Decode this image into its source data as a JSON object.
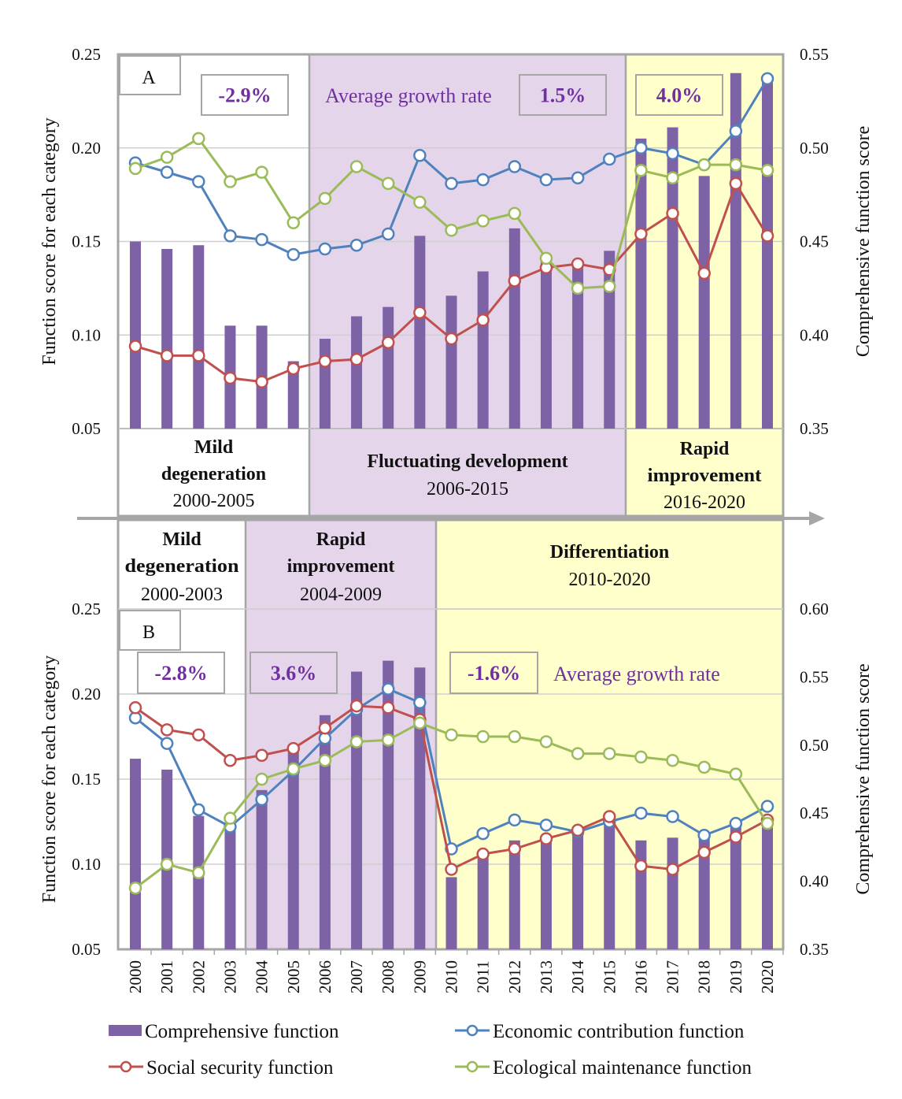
{
  "colors": {
    "bar": "#7E62A6",
    "economic": "#4F81BD",
    "social": "#C0504D",
    "ecological": "#9BBB59",
    "phase_white": "#FFFFFF",
    "phase_purple": "#E4D5EB",
    "phase_yellow": "#FFFFCC",
    "annotation_text": "#7030A0"
  },
  "x_axis": {
    "years": [
      "2000",
      "2001",
      "2002",
      "2003",
      "2004",
      "2005",
      "2006",
      "2007",
      "2008",
      "2009",
      "2010",
      "2011",
      "2012",
      "2013",
      "2014",
      "2015",
      "2016",
      "2017",
      "2018",
      "2019",
      "2020"
    ]
  },
  "legend": {
    "comprehensive": "Comprehensive function",
    "economic": "Economic contribution function",
    "social": "Social security function",
    "ecological": "Ecological maintenance function"
  },
  "chart_data": [
    {
      "type": "bar+line",
      "panel_label": "A",
      "ylabel": "Function score for each category",
      "ylabel_right": "Comprehensive function score",
      "ylim": [
        0.05,
        0.25
      ],
      "yticks": [
        "0.05",
        "0.10",
        "0.15",
        "0.20",
        "0.25"
      ],
      "ylim_right": [
        0.35,
        0.55
      ],
      "yticks_right": [
        "0.35",
        "0.40",
        "0.45",
        "0.50",
        "0.55"
      ],
      "grid": true,
      "phases": [
        {
          "title": "Mild degeneration",
          "title_lines": [
            "Mild",
            "degeneration"
          ],
          "years": "2000-2005",
          "color": "phase_white"
        },
        {
          "title": "Fluctuating development",
          "title_lines": [
            "Fluctuating development"
          ],
          "years": "2006-2015",
          "color": "phase_purple"
        },
        {
          "title": "Rapid improvement",
          "title_lines": [
            "Rapid",
            "improvement"
          ],
          "years": "2016-2020",
          "color": "phase_yellow"
        }
      ],
      "growth_rates": [
        "-2.9%",
        "1.5%",
        "4.0%"
      ],
      "growth_label": "Average growth rate",
      "series": [
        {
          "name": "Comprehensive function",
          "type": "bar",
          "axis": "right",
          "values": [
            0.45,
            0.446,
            0.448,
            0.405,
            0.405,
            0.386,
            0.398,
            0.41,
            0.415,
            0.453,
            0.421,
            0.434,
            0.457,
            0.443,
            0.437,
            0.445,
            0.505,
            0.511,
            0.485,
            0.54,
            0.535
          ]
        },
        {
          "name": "Economic contribution function",
          "type": "line",
          "axis": "left",
          "values": [
            0.192,
            0.187,
            0.182,
            0.153,
            0.151,
            0.143,
            0.146,
            0.148,
            0.154,
            0.196,
            0.181,
            0.183,
            0.19,
            0.183,
            0.184,
            0.194,
            0.2,
            0.197,
            0.191,
            0.209,
            0.237
          ]
        },
        {
          "name": "Social security function",
          "type": "line",
          "axis": "left",
          "values": [
            0.094,
            0.089,
            0.089,
            0.077,
            0.075,
            0.082,
            0.086,
            0.087,
            0.096,
            0.112,
            0.098,
            0.108,
            0.129,
            0.136,
            0.138,
            0.135,
            0.154,
            0.165,
            0.133,
            0.181,
            0.153
          ]
        },
        {
          "name": "Ecological maintenance function",
          "type": "line",
          "axis": "left",
          "values": [
            0.189,
            0.195,
            0.205,
            0.182,
            0.187,
            0.16,
            0.173,
            0.19,
            0.181,
            0.171,
            0.156,
            0.161,
            0.165,
            0.141,
            0.125,
            0.126,
            0.188,
            0.184,
            0.191,
            0.191,
            0.188
          ]
        }
      ]
    },
    {
      "type": "bar+line",
      "panel_label": "B",
      "ylabel": "Function score for each category",
      "ylabel_right": "Comprehensive function score",
      "ylim": [
        0.05,
        0.25
      ],
      "yticks": [
        "0.05",
        "0.10",
        "0.15",
        "0.20",
        "0.25"
      ],
      "ylim_right": [
        0.35,
        0.6
      ],
      "yticks_right": [
        "0.35",
        "0.40",
        "0.45",
        "0.50",
        "0.55",
        "0.60"
      ],
      "grid": true,
      "phases": [
        {
          "title": "Mild degeneration",
          "title_lines": [
            "Mild",
            "degeneration"
          ],
          "years": "2000-2003",
          "color": "phase_white"
        },
        {
          "title": "Rapid improvement",
          "title_lines": [
            "Rapid",
            "improvement"
          ],
          "years": "2004-2009",
          "color": "phase_purple"
        },
        {
          "title": "Differentiation",
          "title_lines": [
            "Differentiation"
          ],
          "years": "2010-2020",
          "color": "phase_yellow"
        }
      ],
      "growth_rates": [
        "-2.8%",
        "3.6%",
        "-1.6%"
      ],
      "growth_label": "Average growth rate",
      "series": [
        {
          "name": "Comprehensive function",
          "type": "bar",
          "axis": "right",
          "values": [
            0.49,
            0.482,
            0.448,
            0.443,
            0.467,
            0.5,
            0.522,
            0.554,
            0.562,
            0.557,
            0.403,
            0.419,
            0.43,
            0.43,
            0.437,
            0.443,
            0.43,
            0.432,
            0.432,
            0.441,
            0.442
          ]
        },
        {
          "name": "Economic contribution function",
          "type": "line",
          "axis": "left",
          "values": [
            0.186,
            0.171,
            0.132,
            0.122,
            0.138,
            0.155,
            0.174,
            0.191,
            0.203,
            0.195,
            0.109,
            0.118,
            0.126,
            0.123,
            0.119,
            0.125,
            0.13,
            0.128,
            0.117,
            0.124,
            0.134
          ]
        },
        {
          "name": "Social security function",
          "type": "line",
          "axis": "left",
          "values": [
            0.192,
            0.179,
            0.176,
            0.161,
            0.164,
            0.168,
            0.18,
            0.193,
            0.192,
            0.185,
            0.097,
            0.106,
            0.109,
            0.115,
            0.12,
            0.128,
            0.099,
            0.097,
            0.107,
            0.116,
            0.126
          ]
        },
        {
          "name": "Ecological maintenance function",
          "type": "line",
          "axis": "left",
          "values": [
            0.086,
            0.1,
            0.095,
            0.127,
            0.15,
            0.156,
            0.161,
            0.172,
            0.173,
            0.183,
            0.176,
            0.175,
            0.175,
            0.172,
            0.165,
            0.165,
            0.163,
            0.161,
            0.157,
            0.153,
            0.124
          ]
        }
      ]
    }
  ]
}
